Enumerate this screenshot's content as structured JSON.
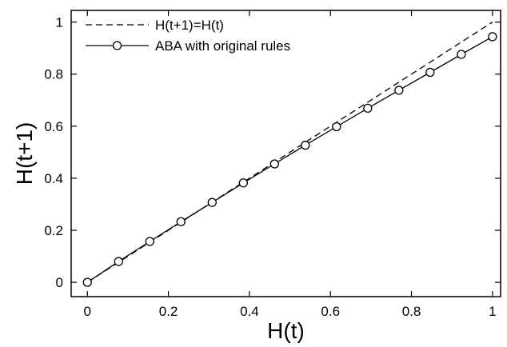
{
  "chart_data": {
    "type": "line",
    "title": "",
    "xlabel": "H(t)",
    "ylabel": "H(t+1)",
    "xlim": [
      -0.04,
      1.02
    ],
    "ylim": [
      -0.055,
      1.045
    ],
    "xticks": [
      0,
      0.2,
      0.4,
      0.6,
      0.8,
      1
    ],
    "xtick_labels": [
      "0",
      "0.2",
      "0.4",
      "0.6",
      "0.8",
      "1"
    ],
    "yticks": [
      0,
      0.2,
      0.4,
      0.6,
      0.8,
      1
    ],
    "ytick_labels": [
      "0",
      "0.2",
      "0.4",
      "0.6",
      "0.8",
      "1"
    ],
    "grid": false,
    "legend_position": "top-left",
    "series": [
      {
        "name": "H(t+1)=H(t)",
        "style": "dashed",
        "markers": false,
        "color": "#000000",
        "x": [
          0,
          1
        ],
        "y": [
          0,
          1
        ]
      },
      {
        "name": "ABA with original rules",
        "style": "solid",
        "markers": true,
        "marker": "open-circle",
        "color": "#000000",
        "x": [
          0,
          0.077,
          0.154,
          0.231,
          0.308,
          0.385,
          0.462,
          0.538,
          0.615,
          0.692,
          0.769,
          0.846,
          0.923,
          1.0
        ],
        "y": [
          0,
          0.08,
          0.157,
          0.233,
          0.307,
          0.382,
          0.455,
          0.527,
          0.598,
          0.669,
          0.738,
          0.807,
          0.876,
          0.944
        ]
      }
    ]
  }
}
